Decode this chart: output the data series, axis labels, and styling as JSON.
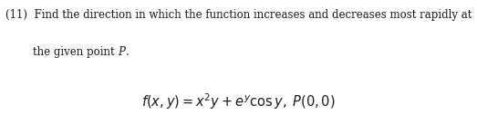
{
  "line1_prefix": "(11)  ",
  "line1_text": "Find the direction in which the function increases and decreases most rapidly at",
  "line2_indent": "        ",
  "line2_text": "the given point ",
  "line2_italic": "P",
  "line2_end": ".",
  "formula": "$f(x, y) = x^2y + e^y \\cos y, \\; P(0,0)$",
  "background_color": "#ffffff",
  "text_color": "#1a1a1a",
  "font_size_body": 8.5,
  "font_size_formula": 10.5,
  "fig_width": 5.23,
  "fig_height": 1.27,
  "dpi": 100
}
